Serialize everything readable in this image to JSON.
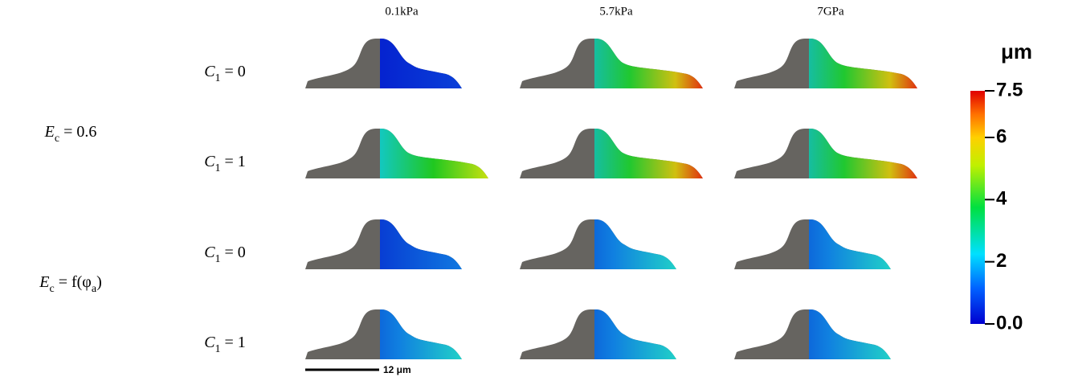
{
  "figure": {
    "column_headers": [
      "0.1kPa",
      "5.7kPa",
      "7GPa"
    ],
    "group_labels": [
      [
        {
          "text": "E"
        },
        {
          "text": "c",
          "sub": true
        },
        {
          "text": " = 0.6"
        }
      ],
      [
        {
          "text": "E"
        },
        {
          "text": "c",
          "sub": true
        },
        {
          "text": " = f(φ"
        },
        {
          "text": "a",
          "sub": true
        },
        {
          "text": ")"
        }
      ]
    ],
    "row_labels": [
      [
        {
          "text": "C"
        },
        {
          "text": "1",
          "sub": true
        },
        {
          "text": " = 0"
        }
      ],
      [
        {
          "text": "C"
        },
        {
          "text": "1",
          "sub": true
        },
        {
          "text": " = 1"
        }
      ],
      [
        {
          "text": "C"
        },
        {
          "text": "1",
          "sub": true
        },
        {
          "text": " = 0"
        }
      ],
      [
        {
          "text": "C"
        },
        {
          "text": "1",
          "sub": true
        },
        {
          "text": " = 1"
        }
      ]
    ],
    "scale_bar": "12 μm",
    "colorbar": {
      "unit": "μm",
      "ylim": [
        0,
        7.5
      ],
      "yticks": [
        7.5,
        6,
        4,
        2,
        {
          "value": 0,
          "label": "0.0"
        }
      ]
    }
  }
}
